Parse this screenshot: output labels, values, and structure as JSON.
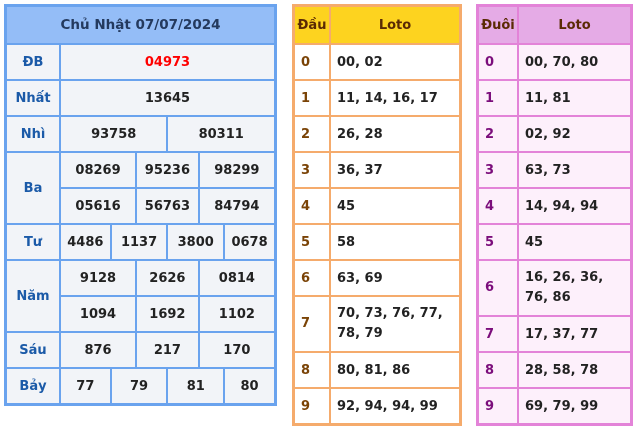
{
  "results": {
    "title": "Chủ Nhật 07/07/2024",
    "rows": [
      {
        "label": "ĐB",
        "values": [
          "04973"
        ]
      },
      {
        "label": "Nhất",
        "values": [
          "13645"
        ]
      },
      {
        "label": "Nhì",
        "values": [
          "93758",
          "80311"
        ]
      },
      {
        "label": "Ba",
        "values": [
          "08269",
          "95236",
          "98299",
          "05616",
          "56763",
          "84794"
        ]
      },
      {
        "label": "Tư",
        "values": [
          "4486",
          "1137",
          "3800",
          "0678"
        ]
      },
      {
        "label": "Năm",
        "values": [
          "9128",
          "2626",
          "0814",
          "1094",
          "1692",
          "1102"
        ]
      },
      {
        "label": "Sáu",
        "values": [
          "876",
          "217",
          "170"
        ]
      },
      {
        "label": "Bảy",
        "values": [
          "77",
          "79",
          "81",
          "80"
        ]
      }
    ]
  },
  "dau": {
    "header_key": "Đầu",
    "header_val": "Loto",
    "rows": [
      {
        "k": "0",
        "v": "00, 02"
      },
      {
        "k": "1",
        "v": "11, 14, 16, 17"
      },
      {
        "k": "2",
        "v": "26, 28"
      },
      {
        "k": "3",
        "v": "36, 37"
      },
      {
        "k": "4",
        "v": "45"
      },
      {
        "k": "5",
        "v": "58"
      },
      {
        "k": "6",
        "v": "63, 69"
      },
      {
        "k": "7",
        "v": "70, 73, 76, 77, 78, 79"
      },
      {
        "k": "8",
        "v": "80, 81, 86"
      },
      {
        "k": "9",
        "v": "92, 94, 94, 99"
      }
    ]
  },
  "duoi": {
    "header_key": "Đuôi",
    "header_val": "Loto",
    "rows": [
      {
        "k": "0",
        "v": "00, 70, 80"
      },
      {
        "k": "1",
        "v": "11, 81"
      },
      {
        "k": "2",
        "v": "02, 92"
      },
      {
        "k": "3",
        "v": "63, 73"
      },
      {
        "k": "4",
        "v": "14, 94, 94"
      },
      {
        "k": "5",
        "v": "45"
      },
      {
        "k": "6",
        "v": "16, 26, 36, 76, 86"
      },
      {
        "k": "7",
        "v": "17, 37, 77"
      },
      {
        "k": "8",
        "v": "28, 58, 78"
      },
      {
        "k": "9",
        "v": "69, 79, 99"
      }
    ]
  }
}
